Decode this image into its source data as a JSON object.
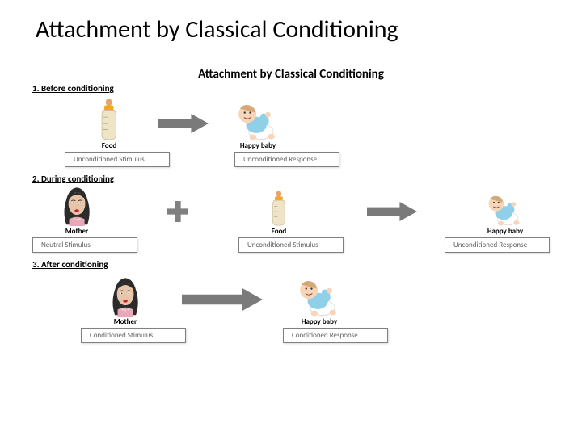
{
  "title": "Attachment by Classical Conditioning",
  "subtitle": "Attachment by Classical Conditioning",
  "colors": {
    "arrow": "#7a7a7a",
    "plus": "#808080",
    "box_border": "#808080",
    "box_text": "#606060",
    "bottle_body": "#f0e4c8",
    "bottle_cap": "#f5a623",
    "bottle_nipple": "#e8a56b",
    "baby_skin": "#f6d5b8",
    "baby_outfit": "#8fd0e8",
    "baby_diaper": "#ffffff",
    "mother_hair": "#2b2b2b",
    "mother_skin": "#e8c5a8",
    "mother_lips": "#c02030",
    "mother_top": "#e8a8b8"
  },
  "sections": [
    {
      "header": "1.  Before conditioning",
      "layout": "two",
      "items": [
        {
          "icon": "bottle",
          "label": "Food",
          "box": "Unconditioned Stimulus"
        },
        {
          "icon": "baby",
          "label": "Happy baby",
          "box": "Unconditioned Response"
        }
      ]
    },
    {
      "header": "2.  During conditioning",
      "layout": "three",
      "items": [
        {
          "icon": "mother",
          "label": "Mother",
          "box": "Neutral Stimulus"
        },
        {
          "icon": "bottle",
          "label": "Food",
          "box": "Unconditioned Stimulus"
        },
        {
          "icon": "baby",
          "label": "Happy baby",
          "box": "Unconditioned Response"
        }
      ]
    },
    {
      "header": "3.  After conditioning",
      "layout": "two-wide",
      "items": [
        {
          "icon": "mother",
          "label": "Mother",
          "box": "Conditioned Stimulus"
        },
        {
          "icon": "baby",
          "label": "Happy baby",
          "box": "Conditioned Response"
        }
      ]
    }
  ]
}
